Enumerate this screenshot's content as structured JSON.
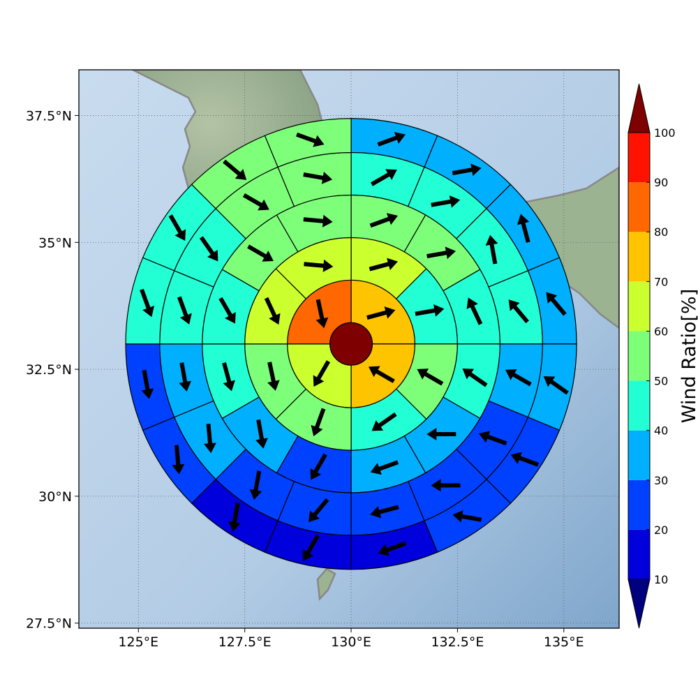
{
  "chart_data": {
    "type": "heatmap",
    "subtype": "polar-sector wind map with arrows",
    "title": "",
    "xlabel": "",
    "ylabel": "",
    "xlim": [
      123.6,
      136.3
    ],
    "ylim": [
      27.4,
      38.4
    ],
    "x_ticks": [
      {
        "value": 125.0,
        "label": "125°E"
      },
      {
        "value": 127.5,
        "label": "127.5°E"
      },
      {
        "value": 130.0,
        "label": "130°E"
      },
      {
        "value": 132.5,
        "label": "132.5°E"
      },
      {
        "value": 135.0,
        "label": "135°E"
      }
    ],
    "y_ticks": [
      {
        "value": 27.5,
        "label": "27.5°N"
      },
      {
        "value": 30.0,
        "label": "30°N"
      },
      {
        "value": 32.5,
        "label": "32.5°N"
      },
      {
        "value": 35.0,
        "label": "35°N"
      },
      {
        "value": 37.5,
        "label": "37.5°N"
      }
    ],
    "grid": true,
    "center": {
      "lon": 130.0,
      "lat": 33.0
    },
    "rings": [
      {
        "r_in": 0.0,
        "r_out": 0.5,
        "sectors": 1
      },
      {
        "r_in": 0.5,
        "r_out": 1.5,
        "sectors": 4
      },
      {
        "r_in": 1.5,
        "r_out": 2.5,
        "sectors": 8
      },
      {
        "r_in": 2.5,
        "r_out": 3.5,
        "sectors": 12
      },
      {
        "r_in": 3.5,
        "r_out": 4.5,
        "sectors": 16
      },
      {
        "r_in": 4.5,
        "r_out": 5.3,
        "sectors": 16
      }
    ],
    "ring_values": [
      [
        105
      ],
      [
        75,
        75,
        65,
        82
      ],
      [
        65,
        45,
        55,
        45,
        55,
        55,
        65,
        65
      ],
      [
        55,
        55,
        45,
        45,
        35,
        35,
        25,
        35,
        45,
        45,
        55,
        55
      ],
      [
        45,
        45,
        45,
        45,
        35,
        25,
        25,
        25,
        25,
        25,
        35,
        35,
        45,
        45,
        55,
        55
      ],
      [
        35,
        35,
        35,
        35,
        35,
        25,
        25,
        15,
        15,
        15,
        25,
        25,
        45,
        45,
        55,
        55
      ]
    ],
    "ring_arrows": [
      [
        null
      ],
      [
        [
          75,
          1.0
        ],
        [
          -60,
          1.0
        ],
        [
          -150,
          1.0
        ],
        [
          168,
          1.0
        ]
      ],
      [
        [
          75,
          1.0
        ],
        [
          80,
          1.0
        ],
        [
          -60,
          1.0
        ],
        [
          -125,
          1.0
        ],
        [
          -160,
          1.0
        ],
        [
          168,
          1.0
        ],
        [
          155,
          1.0
        ],
        [
          95,
          1.0
        ]
      ],
      [
        [
          70,
          1.0
        ],
        [
          80,
          1.0
        ],
        [
          -25,
          1.0
        ],
        [
          -55,
          1.0
        ],
        [
          -90,
          1.0
        ],
        [
          -110,
          1.0
        ],
        [
          -150,
          1.0
        ],
        [
          170,
          1.0
        ],
        [
          165,
          1.0
        ],
        [
          150,
          1.0
        ],
        [
          120,
          1.0
        ],
        [
          95,
          1.0
        ]
      ],
      [
        [
          60,
          1.0
        ],
        [
          80,
          1.0
        ],
        [
          -10,
          1.0
        ],
        [
          -40,
          1.0
        ],
        [
          -60,
          1.0
        ],
        [
          -70,
          1.0
        ],
        [
          -90,
          1.0
        ],
        [
          -105,
          1.0
        ],
        [
          -140,
          1.0
        ],
        [
          -170,
          1.0
        ],
        [
          175,
          1.0
        ],
        [
          170,
          1.0
        ],
        [
          160,
          1.0
        ],
        [
          145,
          1.0
        ],
        [
          120,
          1.0
        ],
        [
          100,
          1.0
        ]
      ],
      [
        [
          70,
          1.0
        ],
        [
          80,
          1.0
        ],
        [
          -15,
          1.0
        ],
        [
          -40,
          1.0
        ],
        [
          -55,
          1.0
        ],
        [
          -70,
          1.0
        ],
        [
          -80,
          1.0
        ],
        [
          -110,
          1.0
        ],
        [
          -150,
          1.0
        ],
        [
          -170,
          1.0
        ],
        [
          175,
          1.0
        ],
        [
          170,
          1.0
        ],
        [
          160,
          1.0
        ],
        [
          150,
          1.0
        ],
        [
          130,
          1.0
        ],
        [
          110,
          1.0
        ]
      ]
    ],
    "colorbar": {
      "label": "Wind Ratio[%]",
      "ticks": [
        "10",
        "20",
        "30",
        "40",
        "50",
        "60",
        "70",
        "80",
        "90",
        "100"
      ],
      "levels": [
        10,
        20,
        30,
        40,
        50,
        60,
        70,
        80,
        90,
        100
      ],
      "colors": [
        "#0000dd",
        "#0040ff",
        "#00b0ff",
        "#23ffd4",
        "#7dff7a",
        "#ccff2e",
        "#ffc400",
        "#ff6800",
        "#ff1200"
      ],
      "under_color": "#00007f",
      "over_color": "#7f0000"
    },
    "map": {
      "land_color": "#8aa486",
      "ocean_color": "#b9d0e8",
      "coastline_color": "#888888"
    }
  }
}
